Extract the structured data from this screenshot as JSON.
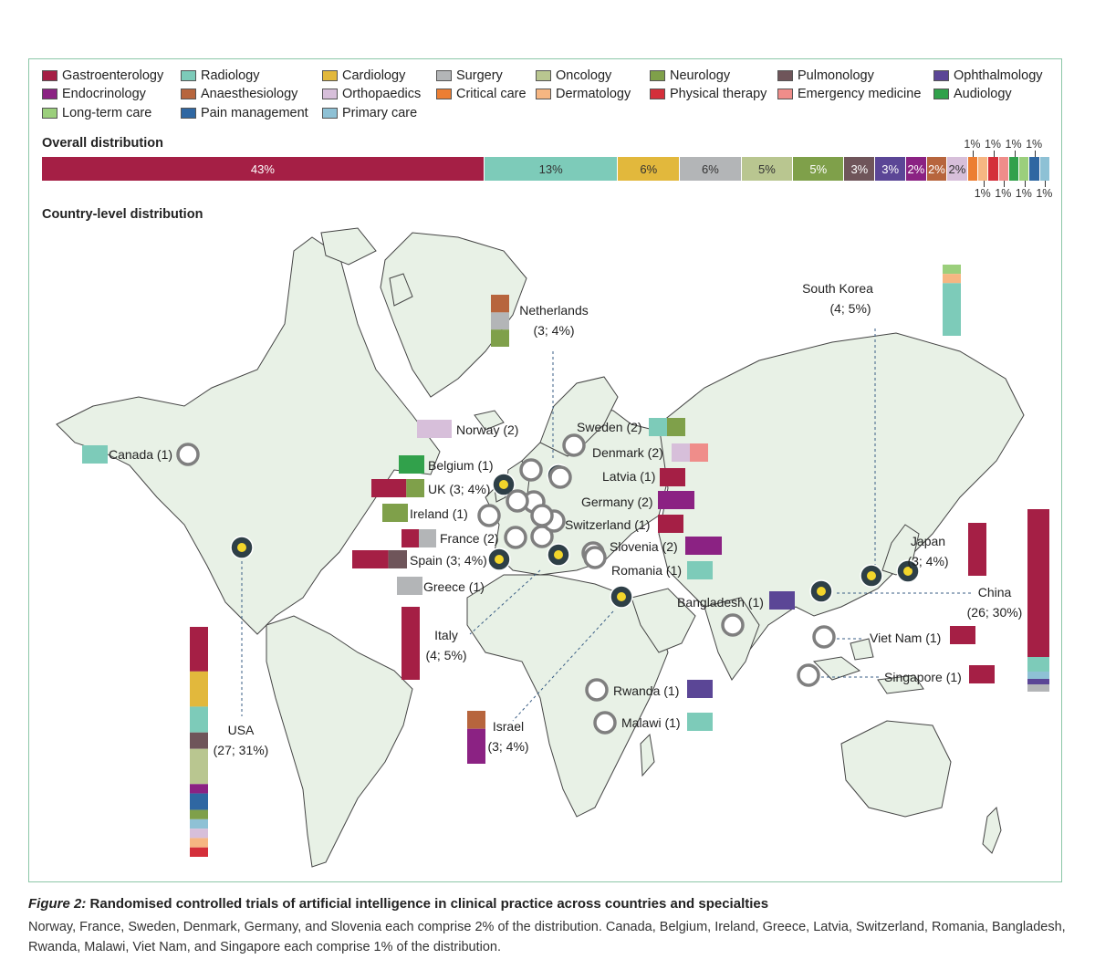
{
  "legend": [
    {
      "name": "Gastroenterology",
      "color": "#a51f45"
    },
    {
      "name": "Radiology",
      "color": "#7dcbb9"
    },
    {
      "name": "Cardiology",
      "color": "#e2b83c"
    },
    {
      "name": "Surgery",
      "color": "#b3b5b7"
    },
    {
      "name": "Oncology",
      "color": "#b9c690"
    },
    {
      "name": "Neurology",
      "color": "#7fa04a"
    },
    {
      "name": "Pulmonology",
      "color": "#6f555a"
    },
    {
      "name": "Ophthalmology",
      "color": "#5b4696"
    },
    {
      "name": "Endocrinology",
      "color": "#8b2283"
    },
    {
      "name": "Anaesthesiology",
      "color": "#b7653d"
    },
    {
      "name": "Orthopaedics",
      "color": "#d7bfda"
    },
    {
      "name": "Critical care",
      "color": "#ec7e33"
    },
    {
      "name": "Dermatology",
      "color": "#f6b682"
    },
    {
      "name": "Physical therapy",
      "color": "#d42f3a"
    },
    {
      "name": "Emergency medicine",
      "color": "#ef8d8a"
    },
    {
      "name": "Audiology",
      "color": "#31a14b"
    },
    {
      "name": "Long-term care",
      "color": "#9bcf7c"
    },
    {
      "name": "Pain management",
      "color": "#2f67a2"
    },
    {
      "name": "Primary care",
      "color": "#8ec1d5"
    }
  ],
  "headings": {
    "overall": "Overall distribution",
    "country": "Country-level distribution"
  },
  "chart_data": [
    {
      "type": "bar",
      "title": "Overall distribution",
      "categories": [
        "Gastroenterology",
        "Radiology",
        "Cardiology",
        "Surgery",
        "Oncology",
        "Neurology",
        "Pulmonology",
        "Ophthalmology",
        "Endocrinology",
        "Anaesthesiology",
        "Orthopaedics",
        "Critical care",
        "Dermatology",
        "Physical therapy",
        "Emergency medicine",
        "Audiology",
        "Long-term care",
        "Pain management",
        "Primary care"
      ],
      "values": [
        43,
        13,
        6,
        6,
        5,
        5,
        3,
        3,
        2,
        2,
        2,
        1,
        1,
        1,
        1,
        1,
        1,
        1,
        1
      ],
      "labels": [
        "43%",
        "13%",
        "6%",
        "6%",
        "5%",
        "5%",
        "3%",
        "3%",
        "2%",
        "2%",
        "2%",
        "1%",
        "1%",
        "1%",
        "1%",
        "1%",
        "1%",
        "1%",
        "1%"
      ]
    },
    {
      "type": "map",
      "title": "Country-level distribution",
      "countries": [
        {
          "name": "USA",
          "label": "USA",
          "label2": "(27; 31%)",
          "count": 27,
          "percent": 31
        },
        {
          "name": "China",
          "label": "China",
          "label2": "(26; 30%)",
          "count": 26,
          "percent": 30
        },
        {
          "name": "UK",
          "label": "UK (3; 4%)",
          "count": 3,
          "percent": 4
        },
        {
          "name": "Spain",
          "label": "Spain (3; 4%)",
          "count": 3,
          "percent": 4
        },
        {
          "name": "Netherlands",
          "label": "Netherlands",
          "label2": "(3; 4%)",
          "count": 3,
          "percent": 4
        },
        {
          "name": "Italy",
          "label": "Italy",
          "label2": "(4; 5%)",
          "count": 4,
          "percent": 5
        },
        {
          "name": "Israel",
          "label": "Israel",
          "label2": "(3; 4%)",
          "count": 3,
          "percent": 4
        },
        {
          "name": "Japan",
          "label": "Japan",
          "label2": "(3; 4%)",
          "count": 3,
          "percent": 4
        },
        {
          "name": "South Korea",
          "label": "South Korea",
          "label2": "(4; 5%)",
          "count": 4,
          "percent": 5
        },
        {
          "name": "Norway",
          "label": "Norway (2)",
          "count": 2
        },
        {
          "name": "France",
          "label": "France (2)",
          "count": 2
        },
        {
          "name": "Sweden",
          "label": "Sweden (2)",
          "count": 2
        },
        {
          "name": "Denmark",
          "label": "Denmark (2)",
          "count": 2
        },
        {
          "name": "Germany",
          "label": "Germany (2)",
          "count": 2
        },
        {
          "name": "Slovenia",
          "label": "Slovenia (2)",
          "count": 2
        },
        {
          "name": "Canada",
          "label": "Canada (1)",
          "count": 1
        },
        {
          "name": "Belgium",
          "label": "Belgium (1)",
          "count": 1
        },
        {
          "name": "Ireland",
          "label": "Ireland (1)",
          "count": 1
        },
        {
          "name": "Greece",
          "label": "Greece (1)",
          "count": 1
        },
        {
          "name": "Latvia",
          "label": "Latvia (1)",
          "count": 1
        },
        {
          "name": "Switzerland",
          "label": "Switzerland (1)",
          "count": 1
        },
        {
          "name": "Romania",
          "label": "Romania (1)",
          "count": 1
        },
        {
          "name": "Bangladesh",
          "label": "Bangladesh (1)",
          "count": 1
        },
        {
          "name": "Rwanda",
          "label": "Rwanda (1)",
          "count": 1
        },
        {
          "name": "Malawi",
          "label": "Malawi (1)",
          "count": 1
        },
        {
          "name": "Viet Nam",
          "label": "Viet Nam (1)",
          "count": 1
        },
        {
          "name": "Singapore",
          "label": "Singapore (1)",
          "count": 1
        }
      ]
    }
  ],
  "caption": {
    "figure": "Figure 2:",
    "title": "Randomised controlled trials of artificial intelligence in clinical practice across countries and specialties",
    "body": "Norway, France, Sweden, Denmark, Germany, and Slovenia each comprise 2% of the distribution. Canada, Belgium, Ireland, Greece, Latvia, Switzerland, Romania, Bangladesh, Rwanda, Malawi, Viet Nam, and Singapore each comprise 1% of the distribution."
  }
}
